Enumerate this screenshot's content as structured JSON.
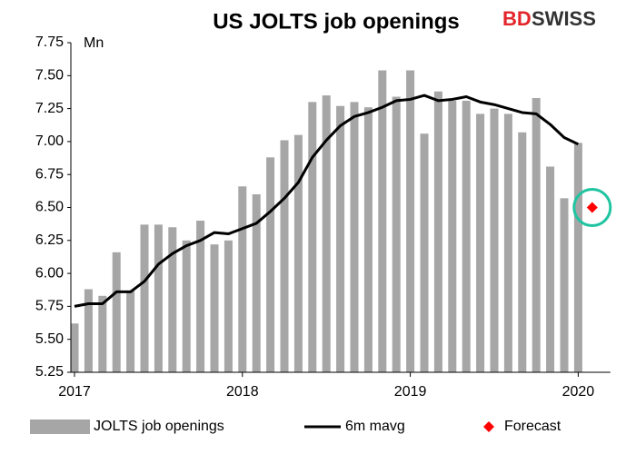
{
  "logo": {
    "first": "BD",
    "second": "SWISS"
  },
  "chart_data": {
    "type": "bar",
    "title": "US JOLTS job openings",
    "y_unit": "Mn",
    "categories": [
      "2017",
      null,
      null,
      null,
      null,
      null,
      null,
      null,
      null,
      null,
      null,
      null,
      "2018",
      null,
      null,
      null,
      null,
      null,
      null,
      null,
      null,
      null,
      null,
      null,
      "2019",
      null,
      null,
      null,
      null,
      null,
      null,
      null,
      null,
      null,
      null,
      null,
      "2020",
      null
    ],
    "series": [
      {
        "name": "JOLTS job openings",
        "type": "bar",
        "color": "#a6a6a6",
        "values": [
          5.62,
          5.88,
          5.83,
          6.16,
          5.87,
          6.37,
          6.37,
          6.35,
          6.25,
          6.4,
          6.22,
          6.25,
          6.66,
          6.6,
          6.88,
          7.01,
          7.05,
          7.3,
          7.35,
          7.27,
          7.3,
          7.26,
          7.54,
          7.34,
          7.54,
          7.06,
          7.38,
          7.31,
          7.31,
          7.21,
          7.25,
          7.21,
          7.07,
          7.33,
          6.81,
          6.57,
          6.99,
          null
        ]
      },
      {
        "name": "6m mavg",
        "type": "line",
        "color": "#000000",
        "values": [
          5.75,
          5.77,
          5.77,
          5.86,
          5.86,
          5.94,
          6.07,
          6.15,
          6.21,
          6.25,
          6.31,
          6.3,
          6.34,
          6.38,
          6.47,
          6.57,
          6.69,
          6.88,
          7.01,
          7.12,
          7.19,
          7.22,
          7.26,
          7.31,
          7.32,
          7.35,
          7.31,
          7.32,
          7.34,
          7.3,
          7.28,
          7.25,
          7.22,
          7.21,
          7.13,
          7.03,
          6.98,
          null
        ]
      },
      {
        "name": "Forecast",
        "type": "scatter",
        "color": "#ff0000",
        "values": [
          null,
          null,
          null,
          null,
          null,
          null,
          null,
          null,
          null,
          null,
          null,
          null,
          null,
          null,
          null,
          null,
          null,
          null,
          null,
          null,
          null,
          null,
          null,
          null,
          null,
          null,
          null,
          null,
          null,
          null,
          null,
          null,
          null,
          null,
          null,
          null,
          null,
          6.5
        ]
      }
    ],
    "ylim": [
      5.25,
      7.75
    ],
    "yticks": [
      5.25,
      {
        "value": 5.5,
        "label": "5.50"
      },
      5.75,
      {
        "value": 6,
        "label": "6.00"
      },
      6.25,
      {
        "value": 6.5,
        "label": "6.50"
      },
      6.75,
      {
        "value": 7,
        "label": "7.00"
      },
      7.25,
      {
        "value": 7.5,
        "label": "7.50"
      },
      7.75
    ],
    "grid": false
  }
}
